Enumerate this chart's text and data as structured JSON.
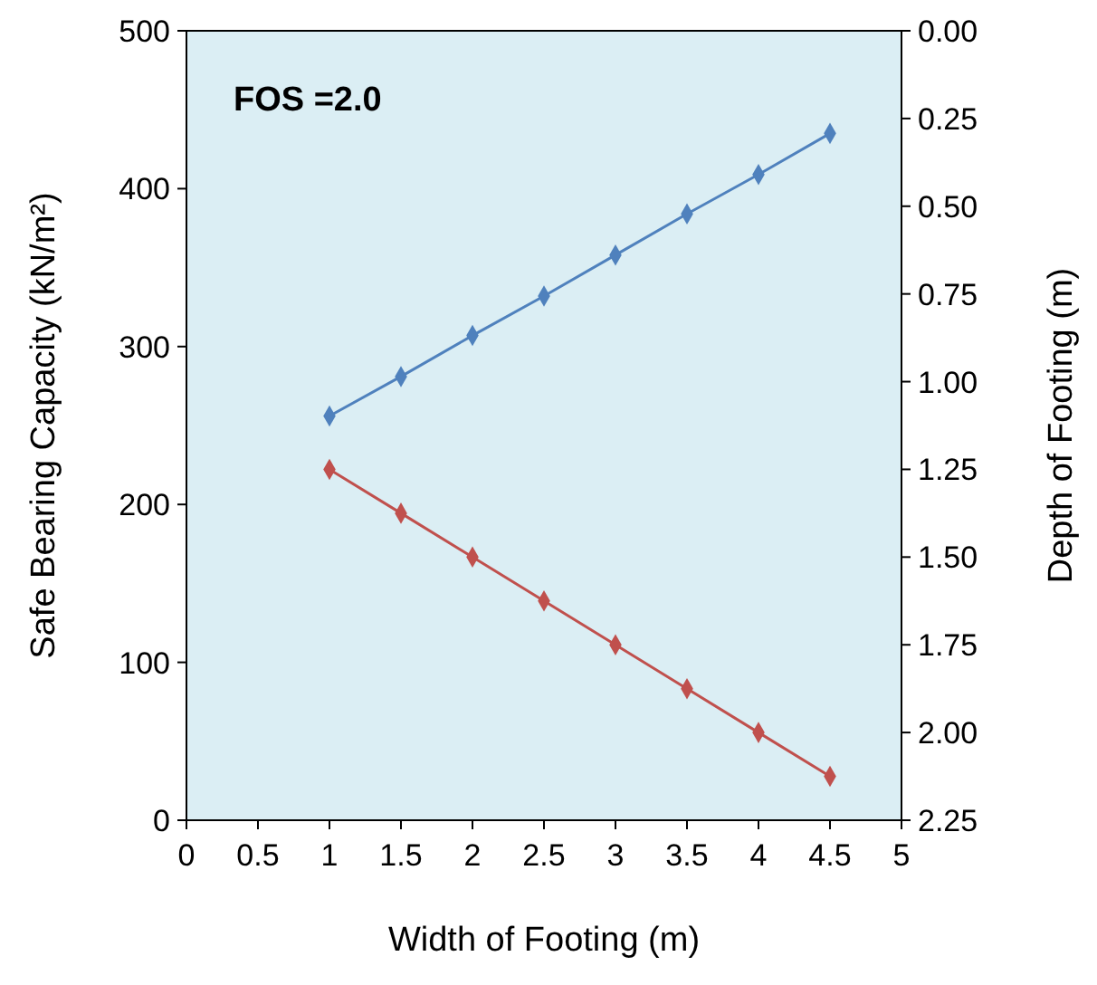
{
  "chart_data": {
    "type": "line",
    "xlabel": "Width of Footing (m)",
    "ylabel": "Safe Bearing Capacity (kN/m²)",
    "y2label": "Depth of Footing (m)",
    "annotations": [
      "FOS =2.0"
    ],
    "x": [
      1,
      1.5,
      2,
      2.5,
      3,
      3.5,
      4,
      4.5
    ],
    "series": [
      {
        "color": "#4f81bd",
        "values": [
          256,
          281,
          307,
          332,
          358,
          384,
          409,
          435
        ]
      },
      {
        "color": "#c0504d",
        "axis": "y2",
        "values": [
          1.25,
          1.375,
          1.5,
          1.625,
          1.75,
          1.875,
          2.0,
          2.125
        ]
      }
    ],
    "xlim": [
      0,
      5
    ],
    "xticks": [
      0,
      0.5,
      1,
      1.5,
      2,
      2.5,
      3,
      3.5,
      4,
      4.5,
      5
    ],
    "ylim": [
      0,
      500
    ],
    "yticks": [
      0,
      100,
      200,
      300,
      400,
      500
    ],
    "y2lim": [
      2.25,
      0
    ],
    "y2ticks": [
      {
        "value": 0,
        "label": "0.00"
      },
      {
        "value": 0.25,
        "label": "0.25"
      },
      {
        "value": 0.5,
        "label": "0.50"
      },
      {
        "value": 0.75,
        "label": "0.75"
      },
      {
        "value": 1,
        "label": "1.00"
      },
      {
        "value": 1.25,
        "label": "1.25"
      },
      {
        "value": 1.5,
        "label": "1.50"
      },
      {
        "value": 1.75,
        "label": "1.75"
      },
      {
        "value": 2,
        "label": "2.00"
      },
      {
        "value": 2.25,
        "label": "2.25"
      }
    ],
    "marker": "diamond",
    "line_style": "solid",
    "grid": false
  }
}
